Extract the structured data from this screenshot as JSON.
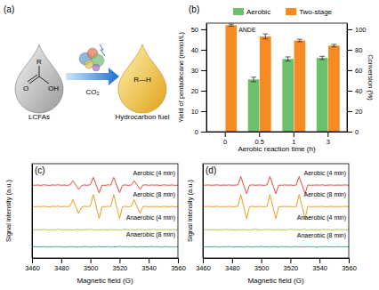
{
  "chart_data": [
    {
      "type": "bar",
      "title": "(b)",
      "categories": [
        "0",
        "0.5",
        "1",
        "3"
      ],
      "x_label": "Aerobic reaction time (h)",
      "y_label": "Yield of pentadecane (mmol/L)",
      "y2_label": "Conversion (%)",
      "ylim": [
        0,
        53
      ],
      "yticks": [
        0,
        10,
        20,
        30,
        40,
        50
      ],
      "y2lim": [
        0,
        106
      ],
      "y2ticks": [
        0,
        20,
        40,
        60,
        80,
        100
      ],
      "legend": "top",
      "annotation": "ANDE",
      "series": [
        {
          "name": "Aerobic",
          "color": "#6cc06c",
          "axis": "y2",
          "values": [
            null,
            51,
            71,
            72
          ],
          "errors": [
            null,
            2.2,
            2.0,
            1.6
          ]
        },
        {
          "name": "Two-stage",
          "color": "#f58b22",
          "values": [
            52,
            46.5,
            44.5,
            42
          ],
          "errors": [
            0.5,
            1.2,
            0.6,
            0.6
          ]
        }
      ]
    },
    {
      "type": "line",
      "title": "(c)",
      "x_label": "Magnetic field (G)",
      "y_label": "Signal intensity (a.u.)",
      "xlim": [
        3460,
        3560
      ],
      "xticks": [
        3460,
        3480,
        3500,
        3520,
        3540,
        3560
      ],
      "ylim": [
        0,
        11
      ],
      "tick_labels": "x",
      "x": [
        3460,
        3462,
        3464,
        3466,
        3468,
        3470,
        3472,
        3474,
        3476,
        3478,
        3480,
        3482,
        3484,
        3486,
        3488,
        3490,
        3492,
        3494,
        3496,
        3498,
        3500,
        3502,
        3504,
        3506,
        3508,
        3510,
        3512,
        3514,
        3516,
        3518,
        3520,
        3522,
        3524,
        3526,
        3528,
        3530,
        3532,
        3534,
        3536,
        3538,
        3540,
        3542,
        3544,
        3546,
        3548,
        3550,
        3552,
        3554,
        3556,
        3558,
        3560
      ],
      "series": [
        {
          "name": "Aerobic (4 min)",
          "color": "#e64a3c",
          "values": [
            8.52,
            8.48,
            8.51,
            8.47,
            8.53,
            8.5,
            8.46,
            8.52,
            8.49,
            8.54,
            8.48,
            8.51,
            8.47,
            8.52,
            9.0,
            8.5,
            8.0,
            8.45,
            8.52,
            8.48,
            8.55,
            9.4,
            8.5,
            7.6,
            8.5,
            8.47,
            8.53,
            8.49,
            9.4,
            8.5,
            7.6,
            8.48,
            8.52,
            8.47,
            8.51,
            9.0,
            8.5,
            8.0,
            8.5,
            8.53,
            8.47,
            8.52,
            8.49,
            8.51,
            8.46,
            8.53,
            8.5,
            8.48,
            8.52,
            8.47,
            8.5
          ]
        },
        {
          "name": "Aerobic (8 min)",
          "color": "#e6a124",
          "values": [
            6.03,
            5.97,
            6.02,
            5.98,
            6.04,
            5.99,
            5.96,
            6.03,
            6.0,
            6.04,
            5.97,
            6.02,
            5.98,
            6.03,
            6.8,
            6.0,
            5.2,
            5.95,
            6.03,
            5.98,
            6.05,
            7.4,
            6.0,
            4.6,
            6.02,
            5.97,
            6.03,
            5.99,
            7.4,
            6.0,
            4.6,
            5.98,
            6.02,
            5.97,
            6.01,
            6.8,
            6.0,
            5.2,
            6.0,
            6.03,
            5.97,
            6.02,
            5.99,
            6.01,
            5.96,
            6.03,
            6.0,
            5.98,
            6.02,
            5.97,
            6.0
          ]
        },
        {
          "name": "Anaerobic (4 min)",
          "color": "#a8c850",
          "values": [
            3.32,
            3.27,
            3.31,
            3.28,
            3.34,
            3.3,
            3.26,
            3.33,
            3.29,
            3.35,
            3.27,
            3.31,
            3.28,
            3.32,
            3.25,
            3.34,
            3.3,
            3.27,
            3.33,
            3.29,
            3.36,
            3.28,
            3.31,
            3.26,
            3.33,
            3.3,
            3.27,
            3.34,
            3.29,
            3.32,
            3.26,
            3.31,
            3.35,
            3.28,
            3.3,
            3.27,
            3.33,
            3.29,
            3.31,
            3.25,
            3.32,
            3.3,
            3.34,
            3.28,
            3.31,
            3.27,
            3.33,
            3.29,
            3.3,
            3.32,
            3.28
          ]
        },
        {
          "name": "Anaerobic (8 min)",
          "color": "#3fa58c",
          "values": [
            1.28,
            1.32,
            1.3,
            1.29,
            1.33,
            1.27,
            1.31,
            1.28,
            1.34,
            1.3,
            1.32,
            1.25,
            1.31,
            1.29,
            1.33,
            1.27,
            1.3,
            1.28,
            1.35,
            1.31,
            1.26,
            1.32,
            1.29,
            1.34,
            1.27,
            1.3,
            1.33,
            1.26,
            1.31,
            1.28,
            1.36,
            1.29,
            1.33,
            1.27,
            1.3,
            1.34,
            1.25,
            1.32,
            1.28,
            1.31,
            1.27,
            1.35,
            1.29,
            1.33,
            1.26,
            1.3,
            1.34,
            1.28,
            1.31,
            1.27,
            1.32
          ]
        }
      ]
    },
    {
      "type": "line",
      "title": "(d)",
      "x_label": "Magnetic field (G)",
      "y_label": "Signal intensity (a.u.)",
      "xlim": [
        3460,
        3560
      ],
      "xticks": [
        3460,
        3480,
        3500,
        3520,
        3540,
        3560
      ],
      "ylim": [
        0,
        11
      ],
      "tick_labels": "x",
      "x": [
        3460,
        3462,
        3464,
        3466,
        3468,
        3470,
        3472,
        3474,
        3476,
        3478,
        3480,
        3482,
        3484,
        3486,
        3488,
        3490,
        3492,
        3494,
        3496,
        3498,
        3500,
        3502,
        3504,
        3506,
        3508,
        3510,
        3512,
        3514,
        3516,
        3518,
        3520,
        3522,
        3524,
        3526,
        3528,
        3530,
        3532,
        3534,
        3536,
        3538,
        3540,
        3542,
        3544,
        3546,
        3548,
        3550,
        3552,
        3554,
        3556,
        3558,
        3560
      ],
      "series": [
        {
          "name": "Aerobic (4 min)",
          "color": "#e64a3c",
          "values": [
            8.51,
            8.49,
            8.52,
            8.48,
            8.5,
            8.53,
            8.47,
            8.51,
            8.49,
            8.52,
            8.48,
            8.5,
            8.51,
            9.5,
            8.5,
            7.5,
            8.49,
            8.52,
            8.48,
            8.51,
            8.5,
            8.47,
            8.52,
            9.5,
            8.5,
            7.5,
            8.5,
            8.48,
            8.52,
            8.49,
            8.51,
            8.47,
            8.5,
            9.5,
            8.5,
            7.5,
            8.52,
            8.48,
            8.5,
            8.51,
            8.49,
            8.53,
            8.47,
            8.5,
            8.52,
            8.48,
            8.51,
            8.49,
            8.5,
            8.52,
            8.48
          ]
        },
        {
          "name": "Aerobic (8 min)",
          "color": "#e6a124",
          "values": [
            6.01,
            5.99,
            6.02,
            5.98,
            6.0,
            6.03,
            5.97,
            6.01,
            5.99,
            6.02,
            5.98,
            6.0,
            6.01,
            7.4,
            6.0,
            4.6,
            5.99,
            6.02,
            5.98,
            6.01,
            6.0,
            5.97,
            6.02,
            7.4,
            6.0,
            4.6,
            6.0,
            5.98,
            6.02,
            5.99,
            6.01,
            5.97,
            6.0,
            7.4,
            6.0,
            4.6,
            6.02,
            5.98,
            6.0,
            6.01,
            5.99,
            6.03,
            5.97,
            6.0,
            6.02,
            5.98,
            6.01,
            5.99,
            6.0,
            6.02,
            5.98
          ]
        },
        {
          "name": "Anaerobic (4 min)",
          "color": "#a8c850",
          "values": [
            3.28,
            3.32,
            3.3,
            3.29,
            3.33,
            3.27,
            3.31,
            3.28,
            3.34,
            3.3,
            3.32,
            3.25,
            3.31,
            3.29,
            3.33,
            3.27,
            3.3,
            3.28,
            3.35,
            3.31,
            3.26,
            3.32,
            3.29,
            3.34,
            3.27,
            3.3,
            3.33,
            3.26,
            3.31,
            3.28,
            3.36,
            3.29,
            3.33,
            3.27,
            3.3,
            3.34,
            3.25,
            3.32,
            3.28,
            3.31,
            3.27,
            3.35,
            3.29,
            3.33,
            3.26,
            3.3,
            3.34,
            3.28,
            3.31,
            3.27,
            3.32
          ]
        },
        {
          "name": "Anaerobic (8 min)",
          "color": "#3fa58c",
          "values": [
            1.32,
            1.27,
            1.31,
            1.28,
            1.34,
            1.3,
            1.26,
            1.33,
            1.29,
            1.35,
            1.27,
            1.31,
            1.28,
            1.32,
            1.25,
            1.34,
            1.3,
            1.27,
            1.33,
            1.29,
            1.36,
            1.28,
            1.31,
            1.26,
            1.33,
            1.3,
            1.27,
            1.34,
            1.29,
            1.32,
            1.26,
            1.31,
            1.35,
            1.28,
            1.3,
            1.27,
            1.33,
            1.29,
            1.31,
            1.25,
            1.32,
            1.3,
            1.34,
            1.28,
            1.31,
            1.27,
            1.33,
            1.29,
            1.3,
            1.32,
            1.28
          ]
        }
      ]
    }
  ],
  "schematic": {
    "panel": "(a)",
    "labels": {
      "r_top": "R",
      "o": "O",
      "oh": "OH",
      "substrate": "LCFAs",
      "gas": "CO₂",
      "product": "R—H",
      "product_name": "Hydrocarbon fuel"
    }
  }
}
